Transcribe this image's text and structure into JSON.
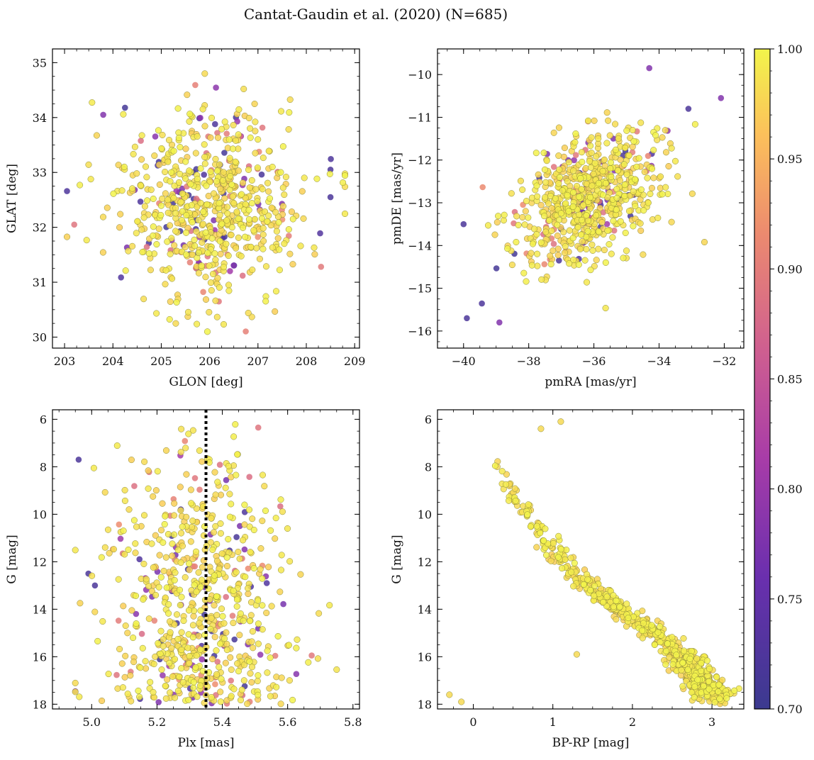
{
  "figure": {
    "title": "Cantat-Gaudin et al. (2020) (N=685)",
    "colormap": "plasma",
    "colorbar": {
      "range": [
        0.7,
        1.0
      ],
      "ticks": [
        "0.70",
        "0.75",
        "0.80",
        "0.85",
        "0.90",
        "0.95",
        "1.00"
      ],
      "tick_values": [
        0.7,
        0.75,
        0.8,
        0.85,
        0.9,
        0.95,
        1.0
      ]
    }
  },
  "chart_data": [
    {
      "id": "galactic",
      "type": "scatter",
      "title": "",
      "xlabel": "GLON [deg]",
      "ylabel": "GLAT [deg]",
      "xlim": [
        202.75,
        209.1
      ],
      "ylim": [
        29.8,
        35.25
      ],
      "xticks": [
        203,
        204,
        205,
        206,
        207,
        208,
        209
      ],
      "xtick_labels": [
        "203",
        "204",
        "205",
        "206",
        "207",
        "208",
        "209"
      ],
      "yticks": [
        30,
        31,
        32,
        33,
        34,
        35
      ],
      "ytick_labels": [
        "30",
        "31",
        "32",
        "33",
        "34",
        "35"
      ],
      "n_points": 685,
      "distribution": {
        "x_center": 206.0,
        "x_sd": 0.95,
        "y_center": 32.4,
        "y_sd": 0.85
      },
      "notable_points": [
        {
          "x": 203.2,
          "y": 32.05,
          "c": 0.89
        },
        {
          "x": 208.5,
          "y": 33.05,
          "c": 0.72
        },
        {
          "x": 208.5,
          "y": 32.55,
          "c": 0.72
        },
        {
          "x": 205.9,
          "y": 34.8,
          "c": 0.98
        },
        {
          "x": 205.3,
          "y": 30.25,
          "c": 0.98
        },
        {
          "x": 203.8,
          "y": 34.05,
          "c": 0.78
        }
      ]
    },
    {
      "id": "propermotion",
      "type": "scatter",
      "title": "",
      "xlabel": "pmRA [mas/yr]",
      "ylabel": "pmDE [mas/yr]",
      "xlim": [
        -40.8,
        -31.4
      ],
      "ylim": [
        -16.4,
        -9.4
      ],
      "xticks": [
        -40,
        -38,
        -36,
        -34,
        -32
      ],
      "xtick_labels": [
        "−40",
        "−38",
        "−36",
        "−34",
        "−32"
      ],
      "yticks": [
        -16,
        -15,
        -14,
        -13,
        -12,
        -11,
        -10
      ],
      "ytick_labels": [
        "−16",
        "−15",
        "−14",
        "−13",
        "−12",
        "−11",
        "−10"
      ],
      "n_points": 685,
      "distribution": {
        "x_center": -36.2,
        "x_sd": 1.1,
        "y_center": -12.95,
        "y_sd": 0.75
      },
      "notable_points": [
        {
          "x": -40.0,
          "y": -13.5,
          "c": 0.72
        },
        {
          "x": -39.9,
          "y": -15.7,
          "c": 0.72
        },
        {
          "x": -38.9,
          "y": -15.8,
          "c": 0.78
        },
        {
          "x": -32.1,
          "y": -10.55,
          "c": 0.78
        },
        {
          "x": -34.3,
          "y": -9.85,
          "c": 0.78
        },
        {
          "x": -33.1,
          "y": -10.8,
          "c": 0.72
        }
      ]
    },
    {
      "id": "parallax",
      "type": "scatter",
      "title": "",
      "xlabel": "Plx [mas]",
      "ylabel": "G [mag]",
      "xlim": [
        4.88,
        5.82
      ],
      "ylim": [
        18.2,
        5.6
      ],
      "xticks": [
        5.0,
        5.2,
        5.4,
        5.6,
        5.8
      ],
      "xtick_labels": [
        "5.0",
        "5.2",
        "5.4",
        "5.6",
        "5.8"
      ],
      "yticks": [
        6,
        8,
        10,
        12,
        14,
        16,
        18
      ],
      "ytick_labels": [
        "6",
        "8",
        "10",
        "12",
        "14",
        "16",
        "18"
      ],
      "n_points": 685,
      "vline": {
        "x": 5.35,
        "style": "dotted",
        "color": "#000000"
      },
      "distribution": {
        "x_center": 5.33,
        "x_sd": 0.14,
        "y_range": [
          6.1,
          18.0
        ]
      },
      "notable_points": [
        {
          "x": 4.96,
          "y": 7.7,
          "c": 0.72
        },
        {
          "x": 4.99,
          "y": 12.5,
          "c": 0.72
        },
        {
          "x": 5.01,
          "y": 13.0,
          "c": 0.72
        },
        {
          "x": 5.51,
          "y": 6.35,
          "c": 0.89
        }
      ]
    },
    {
      "id": "cmd",
      "type": "scatter",
      "title": "",
      "xlabel": "BP-RP [mag]",
      "ylabel": "G [mag]",
      "xlim": [
        -0.45,
        3.4
      ],
      "ylim": [
        18.2,
        5.6
      ],
      "xticks": [
        0,
        1,
        2,
        3
      ],
      "xtick_labels": [
        "0",
        "1",
        "2",
        "3"
      ],
      "yticks": [
        6,
        8,
        10,
        12,
        14,
        16,
        18
      ],
      "ytick_labels": [
        "6",
        "8",
        "10",
        "12",
        "14",
        "16",
        "18"
      ],
      "n_points": 685,
      "sequence": [
        [
          0.25,
          7.4
        ],
        [
          0.5,
          9.0
        ],
        [
          0.8,
          10.6
        ],
        [
          1.2,
          12.3
        ],
        [
          1.6,
          13.4
        ],
        [
          2.0,
          14.4
        ],
        [
          2.4,
          15.3
        ],
        [
          2.7,
          16.3
        ],
        [
          2.9,
          17.2
        ],
        [
          3.1,
          17.8
        ]
      ],
      "notable_points": [
        {
          "x": -0.3,
          "y": 17.6,
          "c": 0.98
        },
        {
          "x": -0.15,
          "y": 17.9,
          "c": 0.98
        },
        {
          "x": 1.3,
          "y": 15.9,
          "c": 0.98
        },
        {
          "x": 1.1,
          "y": 6.1,
          "c": 0.98
        },
        {
          "x": 0.85,
          "y": 6.4,
          "c": 0.98
        }
      ]
    }
  ]
}
